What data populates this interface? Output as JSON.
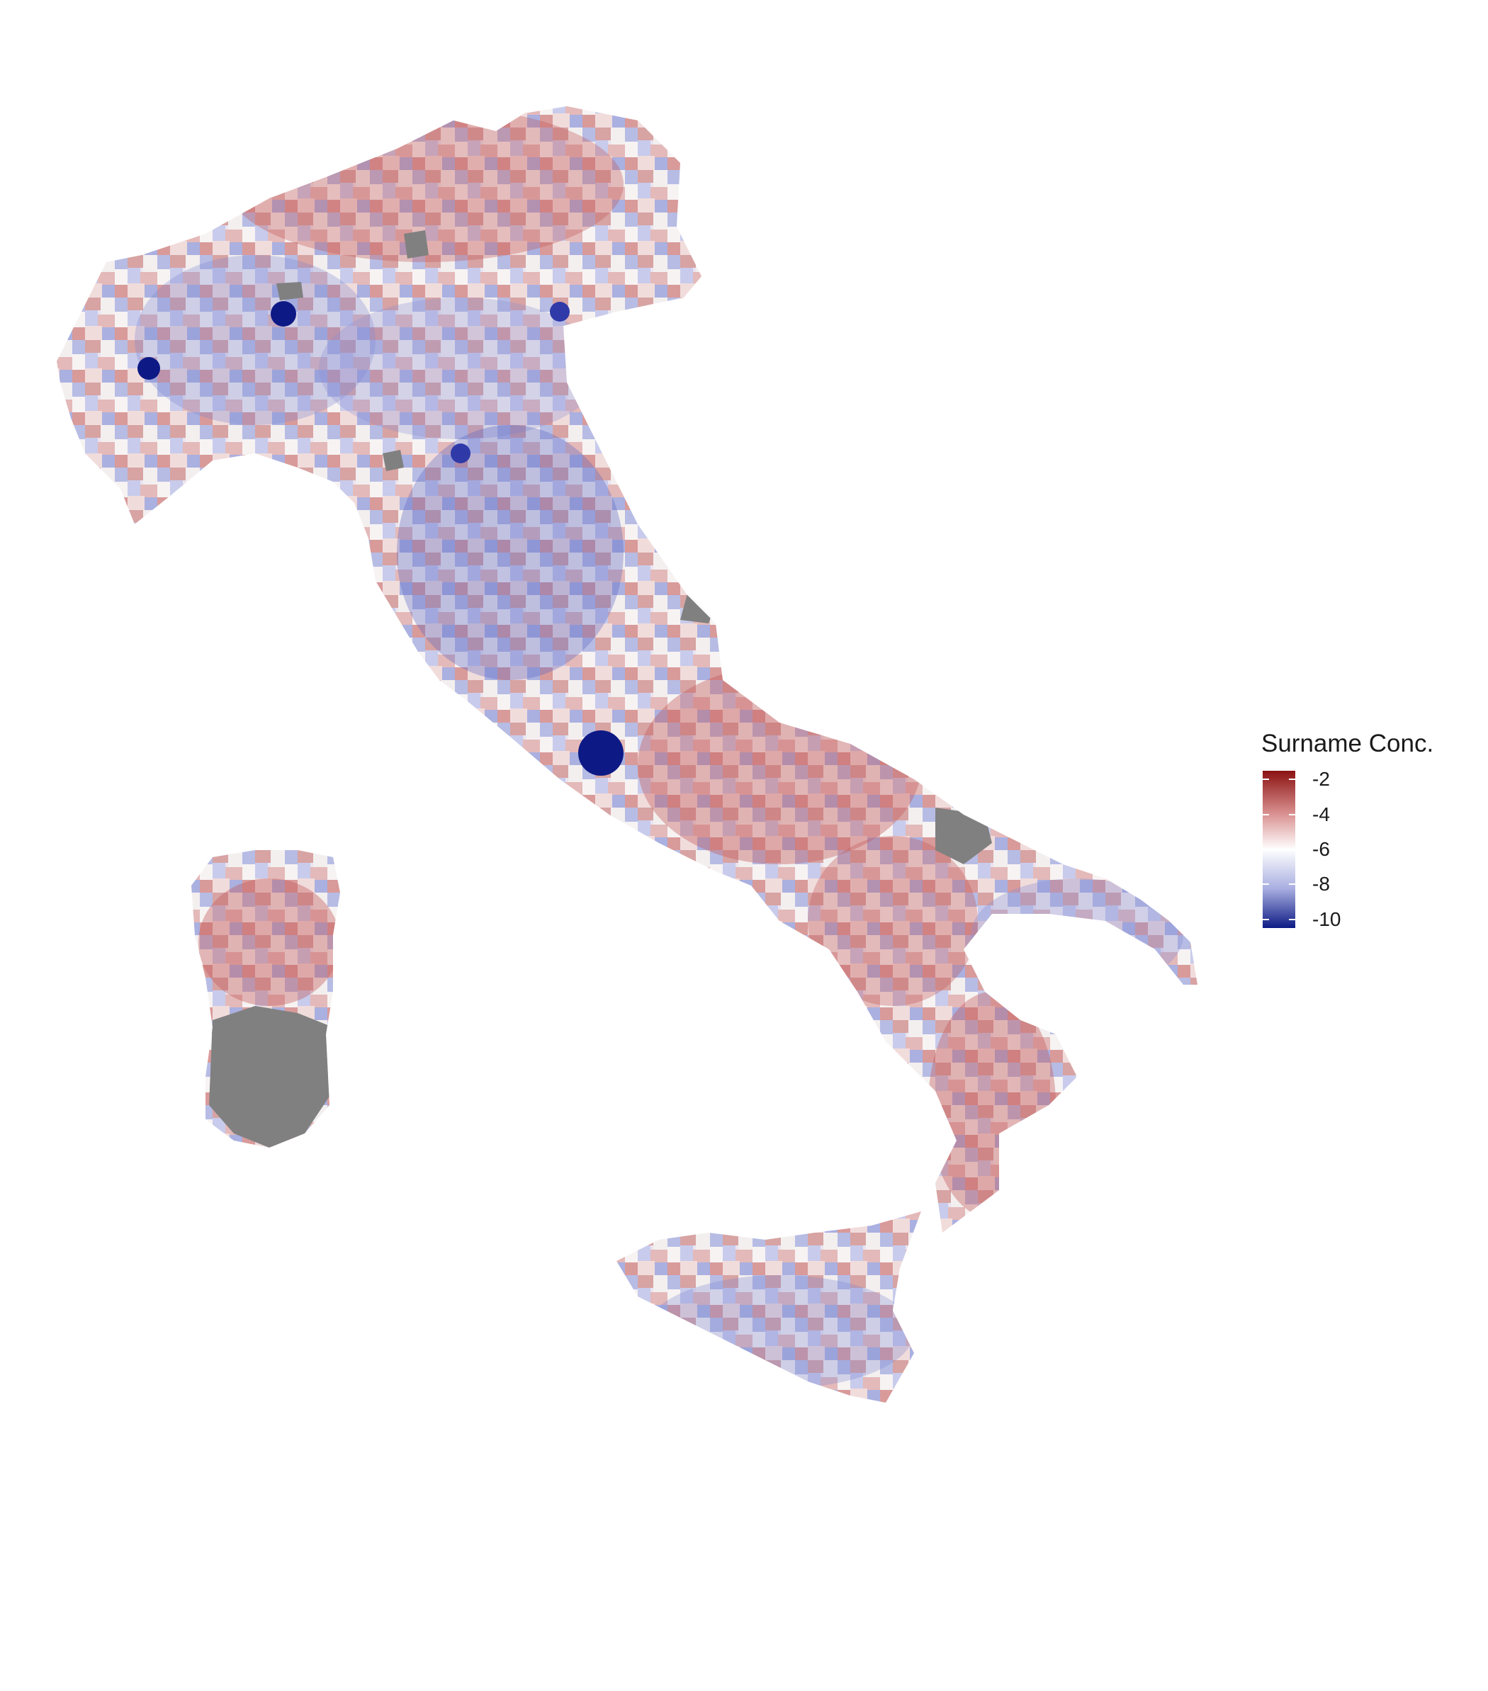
{
  "legend": {
    "title": "Surname Conc.",
    "ticks": [
      {
        "label": "-2",
        "value": -2
      },
      {
        "label": "-4",
        "value": -4
      },
      {
        "label": "-6",
        "value": -6
      },
      {
        "label": "-8",
        "value": -8
      },
      {
        "label": "-10",
        "value": -10
      }
    ],
    "range": [
      -10.5,
      -1.5
    ],
    "colors": {
      "high": "#8b1212",
      "mid": "#ffffff",
      "low": "#0d1a85",
      "missing": "#808080"
    }
  },
  "map": {
    "region": "Italy",
    "fill_variable": "Surname Conc."
  }
}
